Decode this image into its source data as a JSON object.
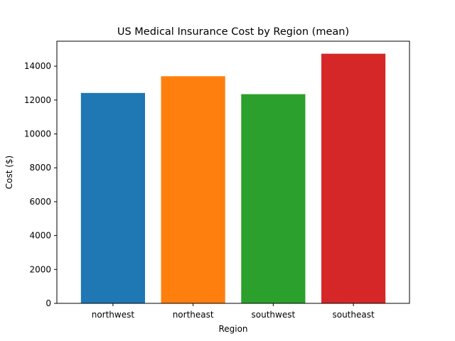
{
  "chart_data": {
    "type": "bar",
    "title": "US Medical Insurance Cost by Region (mean)",
    "xlabel": "Region",
    "ylabel": "Cost ($)",
    "categories": [
      "northwest",
      "northeast",
      "southwest",
      "southeast"
    ],
    "values": [
      12418,
      13406,
      12347,
      14735
    ],
    "colors": [
      "#1f77b4",
      "#ff7f0e",
      "#2ca02c",
      "#d62728"
    ],
    "ylim": [
      0,
      15473
    ],
    "yticks": [
      0,
      2000,
      4000,
      6000,
      8000,
      10000,
      12000,
      14000
    ],
    "grid": false,
    "legend": "none"
  }
}
